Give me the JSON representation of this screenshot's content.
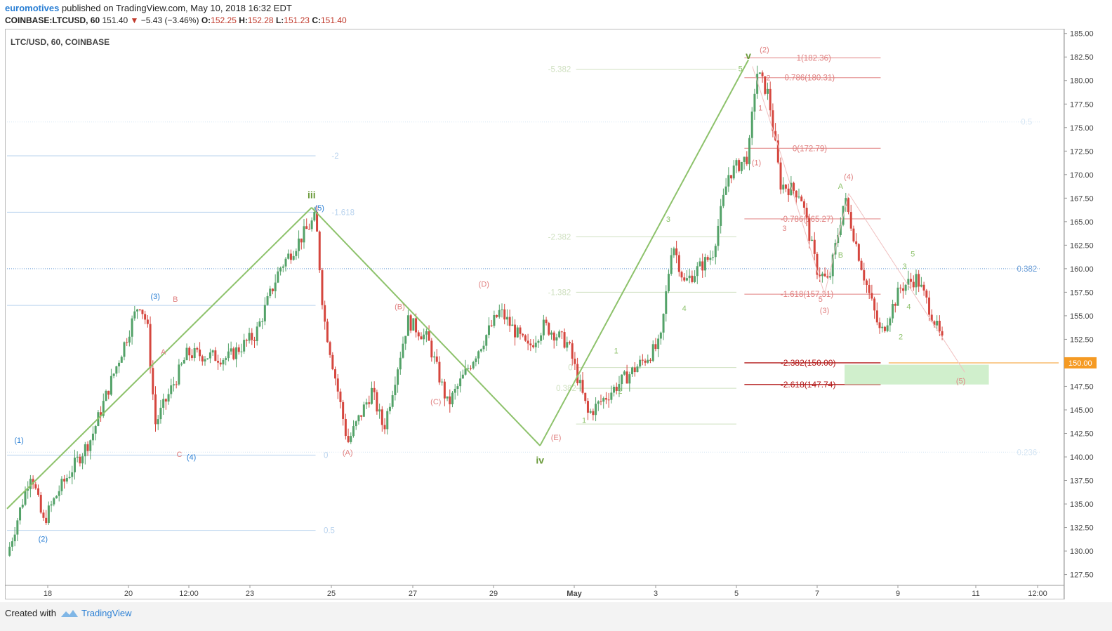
{
  "header": {
    "author": "euromotives",
    "published": "published on TradingView.com, May 10, 2018 16:32 EDT",
    "symbol": "COINBASE:LTCUSD, 60",
    "last": "151.40",
    "change": "−5.43 (−3.46%)",
    "o_label": "O:",
    "o": "152.25",
    "h_label": "H:",
    "h": "152.28",
    "l_label": "L:",
    "l": "151.23",
    "c_label": "C:",
    "c": "151.40"
  },
  "chart_title": "LTC/USD, 60, COINBASE",
  "footer": {
    "created": "Created with",
    "brand": "TradingView"
  },
  "colors": {
    "up": "#53a268",
    "down": "#d5463e",
    "wave": "#8dc26b",
    "blue": "#2a7fd4",
    "red_fib": "#e08080",
    "highlight": "#f59a23"
  },
  "chart_data": {
    "type": "candlestick",
    "y_axis": {
      "min": 126.5,
      "max": 185.5,
      "step": 2.5,
      "ticks": [
        "127.50",
        "130.00",
        "132.50",
        "135.00",
        "137.50",
        "140.00",
        "142.50",
        "145.00",
        "147.50",
        "150.00",
        "152.50",
        "155.00",
        "157.50",
        "160.00",
        "162.50",
        "165.00",
        "167.50",
        "170.00",
        "172.50",
        "175.00",
        "177.50",
        "180.00",
        "182.50",
        "185.00"
      ],
      "last_price": "150.00"
    },
    "x_axis": {
      "ticks": [
        "18",
        "20",
        "12:00",
        "23",
        "25",
        "27",
        "29",
        "May",
        "3",
        "5",
        "7",
        "9",
        "11",
        "12:00"
      ]
    },
    "price_path": [
      {
        "d": 0,
        "p": 129.5
      },
      {
        "d": 0.6,
        "p": 138.5
      },
      {
        "d": 0.9,
        "p": 133.0
      },
      {
        "d": 1.3,
        "p": 136.5
      },
      {
        "d": 2.1,
        "p": 142.0
      },
      {
        "d": 2.8,
        "p": 150.5
      },
      {
        "d": 3.3,
        "p": 156.5
      },
      {
        "d": 3.5,
        "p": 154.0
      },
      {
        "d": 3.7,
        "p": 143.5
      },
      {
        "d": 4.5,
        "p": 151.0
      },
      {
        "d": 5.5,
        "p": 150.5
      },
      {
        "d": 6.2,
        "p": 153.0
      },
      {
        "d": 6.8,
        "p": 160.0
      },
      {
        "d": 7.7,
        "p": 165.5
      },
      {
        "d": 7.9,
        "p": 155.0
      },
      {
        "d": 8.3,
        "p": 146.0
      },
      {
        "d": 8.5,
        "p": 141.5
      },
      {
        "d": 9.1,
        "p": 147.0
      },
      {
        "d": 9.4,
        "p": 143.0
      },
      {
        "d": 10.0,
        "p": 154.5
      },
      {
        "d": 10.5,
        "p": 152.5
      },
      {
        "d": 11.0,
        "p": 145.5
      },
      {
        "d": 11.7,
        "p": 151.0
      },
      {
        "d": 12.3,
        "p": 155.5
      },
      {
        "d": 13.0,
        "p": 151.5
      },
      {
        "d": 13.4,
        "p": 154.0
      },
      {
        "d": 14.0,
        "p": 152.0
      },
      {
        "d": 14.5,
        "p": 144.5
      },
      {
        "d": 15.2,
        "p": 147.5
      },
      {
        "d": 15.7,
        "p": 149.5
      },
      {
        "d": 16.3,
        "p": 152.0
      },
      {
        "d": 16.6,
        "p": 163.0
      },
      {
        "d": 16.9,
        "p": 158.5
      },
      {
        "d": 17.6,
        "p": 161.5
      },
      {
        "d": 18.0,
        "p": 170.0
      },
      {
        "d": 18.5,
        "p": 172.0
      },
      {
        "d": 18.7,
        "p": 181.0
      },
      {
        "d": 19.0,
        "p": 178.5
      },
      {
        "d": 19.3,
        "p": 169.0
      },
      {
        "d": 19.8,
        "p": 168.0
      },
      {
        "d": 20.2,
        "p": 160.0
      },
      {
        "d": 20.5,
        "p": 158.5
      },
      {
        "d": 20.9,
        "p": 167.5
      },
      {
        "d": 21.4,
        "p": 159.0
      },
      {
        "d": 21.8,
        "p": 153.0
      },
      {
        "d": 22.3,
        "p": 158.0
      },
      {
        "d": 22.7,
        "p": 159.0
      },
      {
        "d": 23.0,
        "p": 156.0
      },
      {
        "d": 23.4,
        "p": 151.5
      }
    ],
    "lines": [
      {
        "kind": "wave",
        "from": [
          0,
          134.5
        ],
        "to": [
          7.6,
          166.5
        ]
      },
      {
        "kind": "wave",
        "from": [
          7.6,
          166.5
        ],
        "to": [
          13.3,
          141.2
        ]
      },
      {
        "kind": "wave",
        "from": [
          13.3,
          141.2
        ],
        "to": [
          18.5,
          182.2
        ]
      }
    ],
    "fib_levels": [
      {
        "label": "-2",
        "price": 172.0,
        "x0": 0,
        "x1": 7.7,
        "color": "#b9d3ee",
        "label_x": 8.1
      },
      {
        "label": "-1.618",
        "price": 166.0,
        "x0": 0,
        "x1": 7.7,
        "color": "#b9d3ee",
        "label_x": 8.1
      },
      {
        "label": "",
        "price": 156.1,
        "x0": 0,
        "x1": 7.7,
        "color": "#b9d3ee"
      },
      {
        "label": "0",
        "price": 140.2,
        "x0": 0,
        "x1": 7.7,
        "color": "#b9d3ee",
        "label_x": 7.9
      },
      {
        "label": "0.5",
        "price": 132.2,
        "x0": 0,
        "x1": 7.7,
        "color": "#b9d3ee",
        "label_x": 7.9
      },
      {
        "label": "-5.382",
        "price": 181.2,
        "x0": 14.2,
        "x1": 18.2,
        "color": "#cfe0c0",
        "label_x": 13.5
      },
      {
        "label": "-2.382",
        "price": 163.4,
        "x0": 14.2,
        "x1": 18.2,
        "color": "#cfe0c0",
        "label_x": 13.5
      },
      {
        "label": "-1.382",
        "price": 157.5,
        "x0": 14.2,
        "x1": 18.2,
        "color": "#cfe0c0",
        "label_x": 13.5
      },
      {
        "label": "0",
        "price": 149.5,
        "x0": 14.2,
        "x1": 18.2,
        "color": "#cfe0c0",
        "label_x": 14.0
      },
      {
        "label": "0.382",
        "price": 147.3,
        "x0": 14.2,
        "x1": 18.2,
        "color": "#cfe0c0",
        "label_x": 13.7
      },
      {
        "label": "",
        "price": 143.5,
        "x0": 14.2,
        "x1": 18.2,
        "color": "#cfe0c0"
      },
      {
        "label": "0.5",
        "price": 175.6,
        "x0": 0,
        "x1": 25.8,
        "color": "#d6e6f4",
        "dotted": true,
        "label_x": 25.3
      },
      {
        "label": "0.382",
        "price": 160.0,
        "x0": 0,
        "x1": 25.8,
        "color": "#6d9fd8",
        "dotted": true,
        "label_x": 25.2
      },
      {
        "label": "0.236",
        "price": 140.5,
        "x0": 0,
        "x1": 25.8,
        "color": "#d6e6f4",
        "dotted": true,
        "label_x": 25.2
      },
      {
        "label": "1(182.36)",
        "price": 182.4,
        "x0": 18.4,
        "x1": 21.8,
        "color": "#e08080",
        "label_x": 19.7
      },
      {
        "label": "0.786(180.31)",
        "price": 180.3,
        "x0": 18.4,
        "x1": 21.8,
        "color": "#e08080",
        "label_x": 19.4
      },
      {
        "label": "0(172.79)",
        "price": 172.8,
        "x0": 18.4,
        "x1": 21.8,
        "color": "#e08080",
        "label_x": 19.6
      },
      {
        "label": "-0.786(165.27)",
        "price": 165.3,
        "x0": 18.4,
        "x1": 21.8,
        "color": "#e08080",
        "label_x": 19.3
      },
      {
        "label": "-1.618(157.31)",
        "price": 157.3,
        "x0": 18.4,
        "x1": 21.8,
        "color": "#e08080",
        "label_x": 19.3
      },
      {
        "label": "-2.382(150.00)",
        "price": 150.0,
        "x0": 18.4,
        "x1": 21.8,
        "color": "#b31919",
        "bold": true,
        "label_x": 19.3
      },
      {
        "label": "-2.618(147.74)",
        "price": 147.7,
        "x0": 18.4,
        "x1": 21.8,
        "color": "#b31919",
        "bold": true,
        "label_x": 19.3
      },
      {
        "label": "",
        "price": 150.0,
        "x0": 22.0,
        "x1": 26.4,
        "color": "#f59a23"
      }
    ],
    "zone": {
      "x0": 20.9,
      "x1": 24.5,
      "p0": 147.7,
      "p1": 149.8
    },
    "labels": [
      {
        "text": "iii",
        "d": 7.6,
        "p": 167.5,
        "color": "#6a9a3a",
        "bold": true
      },
      {
        "text": "iv",
        "d": 13.3,
        "p": 139.3,
        "color": "#6a9a3a",
        "bold": true
      },
      {
        "text": "v",
        "d": 18.5,
        "p": 182.3,
        "color": "#6a9a3a",
        "bold": true
      },
      {
        "text": "(1)",
        "d": 0.3,
        "p": 141.5,
        "color": "#2a7fd4"
      },
      {
        "text": "(2)",
        "d": 0.9,
        "p": 131.0,
        "color": "#2a7fd4"
      },
      {
        "text": "(3)",
        "d": 3.7,
        "p": 156.8,
        "color": "#2a7fd4"
      },
      {
        "text": "(4)",
        "d": 4.6,
        "p": 139.7,
        "color": "#2a7fd4"
      },
      {
        "text": "(5)",
        "d": 7.8,
        "p": 166.2,
        "color": "#2a7fd4"
      },
      {
        "text": "B",
        "d": 4.2,
        "p": 156.5,
        "color": "#e08080"
      },
      {
        "text": "A",
        "d": 3.9,
        "p": 150.9,
        "color": "#e08080"
      },
      {
        "text": "C",
        "d": 4.3,
        "p": 140.0,
        "color": "#e08080"
      },
      {
        "text": "(A)",
        "d": 8.5,
        "p": 140.2,
        "color": "#e08080"
      },
      {
        "text": "(B)",
        "d": 9.8,
        "p": 155.7,
        "color": "#e08080"
      },
      {
        "text": "(C)",
        "d": 10.7,
        "p": 145.6,
        "color": "#e08080"
      },
      {
        "text": "(D)",
        "d": 11.9,
        "p": 158.1,
        "color": "#e08080"
      },
      {
        "text": "(E)",
        "d": 13.7,
        "p": 141.8,
        "color": "#e08080"
      },
      {
        "text": "1",
        "d": 15.2,
        "p": 151.0,
        "color": "#8dc26b"
      },
      {
        "text": "2",
        "d": 15.3,
        "p": 146.7,
        "color": "#8dc26b"
      },
      {
        "text": "3",
        "d": 16.5,
        "p": 165.0,
        "color": "#8dc26b"
      },
      {
        "text": "4",
        "d": 16.9,
        "p": 155.5,
        "color": "#8dc26b"
      },
      {
        "text": "5",
        "d": 18.3,
        "p": 181.0,
        "color": "#8dc26b"
      },
      {
        "text": "1",
        "d": 14.4,
        "p": 143.6,
        "color": "#8dc26b"
      },
      {
        "text": "(1)",
        "d": 18.7,
        "p": 171.0,
        "color": "#e08080"
      },
      {
        "text": "(2)",
        "d": 18.9,
        "p": 183.0,
        "color": "#e08080"
      },
      {
        "text": "2",
        "d": 19.0,
        "p": 180.0,
        "color": "#e08080"
      },
      {
        "text": "1",
        "d": 18.8,
        "p": 176.8,
        "color": "#e08080"
      },
      {
        "text": "3",
        "d": 19.4,
        "p": 164.0,
        "color": "#e08080"
      },
      {
        "text": "5",
        "d": 20.3,
        "p": 156.5,
        "color": "#e08080"
      },
      {
        "text": "(3)",
        "d": 20.4,
        "p": 155.3,
        "color": "#e08080"
      },
      {
        "text": "(4)",
        "d": 21.0,
        "p": 169.5,
        "color": "#e08080"
      },
      {
        "text": "A",
        "d": 20.8,
        "p": 168.5,
        "color": "#8dc26b"
      },
      {
        "text": "B",
        "d": 20.8,
        "p": 161.2,
        "color": "#8dc26b"
      },
      {
        "text": "2",
        "d": 22.3,
        "p": 152.5,
        "color": "#8dc26b"
      },
      {
        "text": "3",
        "d": 22.4,
        "p": 160.0,
        "color": "#8dc26b"
      },
      {
        "text": "4",
        "d": 22.5,
        "p": 155.7,
        "color": "#8dc26b"
      },
      {
        "text": "5",
        "d": 22.6,
        "p": 161.3,
        "color": "#8dc26b"
      },
      {
        "text": "(5)",
        "d": 23.8,
        "p": 147.8,
        "color": "#e08080"
      }
    ]
  }
}
